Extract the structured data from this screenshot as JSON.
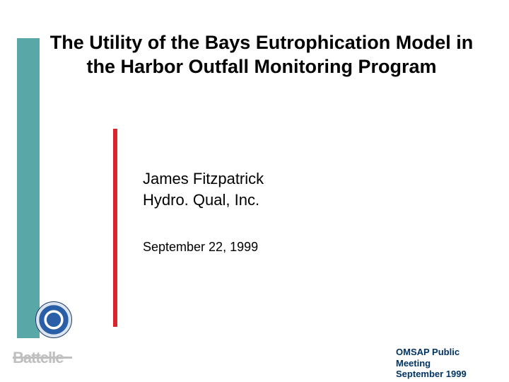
{
  "title": "The Utility of the Bays Eutrophication Model in the Harbor Outfall Monitoring Program",
  "title_fontsize": 27,
  "author": {
    "name": "James Fitzpatrick",
    "affiliation": "Hydro. Qual, Inc.",
    "fontsize": 22
  },
  "date": {
    "text": "September 22, 1999",
    "fontsize": 18
  },
  "footer": {
    "line1": "OMSAP Public",
    "line2": "Meeting",
    "line3": "September 1999",
    "fontsize": 13,
    "color": "#003366"
  },
  "logo_battelle": {
    "text": "Battelle",
    "color": "#bfbfbf",
    "fontsize": 22
  },
  "colors": {
    "teal": "#5aa7a7",
    "red": "#d8262c",
    "title_text": "#000000",
    "body_text": "#000000",
    "background": "#ffffff",
    "seal_blue": "#2a5fa8"
  }
}
